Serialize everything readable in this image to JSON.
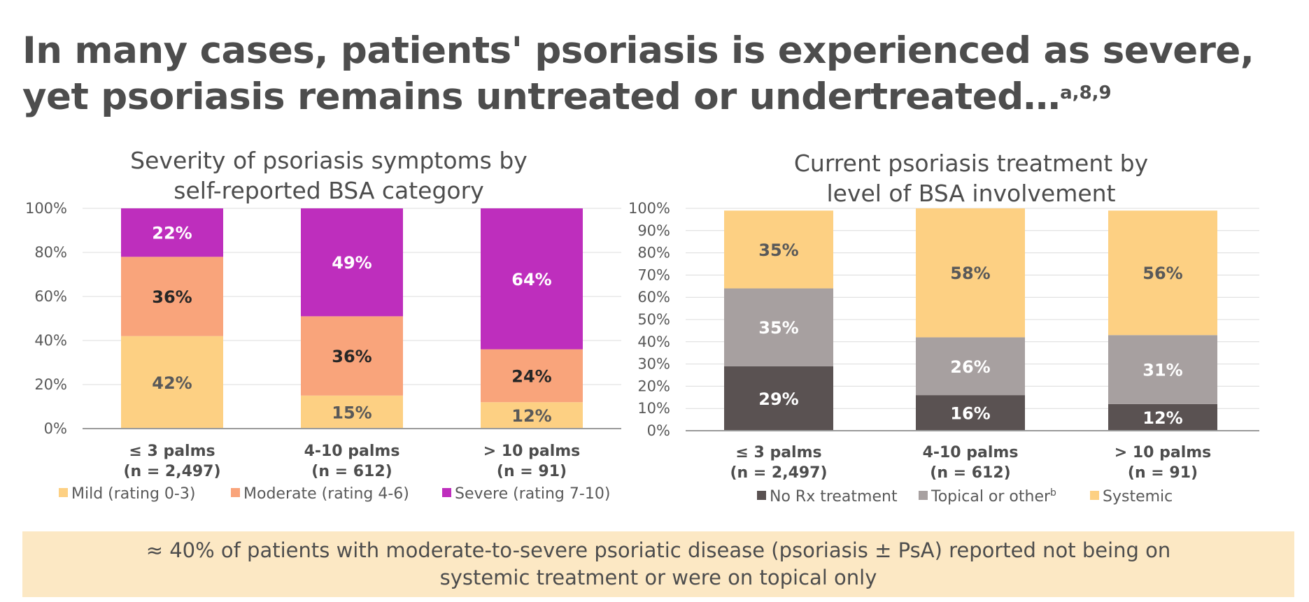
{
  "headline": {
    "line1": "In many cases, patients' psoriasis is experienced as severe,",
    "line2": "yet psoriasis remains untreated or undertreated…",
    "superscript": "a,8,9"
  },
  "callout": {
    "text": "≈ 40% of patients with moderate-to-severe psoriatic disease (psoriasis ± PsA) reported not being on systemic treatment or were on topical only"
  },
  "chart_data": [
    {
      "type": "bar",
      "stacked": true,
      "title": [
        "Severity of psoriasis symptoms by",
        "self-reported BSA category"
      ],
      "categories": [
        [
          "≤ 3 palms",
          "(n = 2,497)"
        ],
        [
          "4-10 palms",
          "(n = 612)"
        ],
        [
          "> 10 palms",
          "(n = 91)"
        ]
      ],
      "y_ticks": [
        "0%",
        "20%",
        "40%",
        "60%",
        "80%",
        "100%"
      ],
      "ylim": [
        0,
        100
      ],
      "legend_position": "bottom",
      "series": [
        {
          "name": "Mild (rating 0-3)",
          "color": "#fdd083",
          "label_color": "#595959",
          "values": [
            42,
            15,
            12
          ],
          "labels": [
            "42%",
            "15%",
            "12%"
          ]
        },
        {
          "name": "Moderate (rating 4-6)",
          "color": "#f9a47b",
          "label_color": "#262626",
          "values": [
            36,
            36,
            24
          ],
          "labels": [
            "36%",
            "36%",
            "24%"
          ]
        },
        {
          "name": "Severe (rating 7-10)",
          "color": "#be2ebd",
          "label_color": "#ffffff",
          "values": [
            22,
            49,
            64
          ],
          "labels": [
            "22%",
            "49%",
            "64%"
          ]
        }
      ]
    },
    {
      "type": "bar",
      "stacked": true,
      "title": [
        "Current psoriasis treatment by",
        "level of BSA involvement"
      ],
      "categories": [
        [
          "≤ 3 palms",
          "(n = 2,497)"
        ],
        [
          "4-10 palms",
          "(n = 612)"
        ],
        [
          "> 10 palms",
          "(n = 91)"
        ]
      ],
      "y_ticks": [
        "0%",
        "10%",
        "20%",
        "30%",
        "40%",
        "50%",
        "60%",
        "70%",
        "80%",
        "90%",
        "100%"
      ],
      "ylim": [
        0,
        100
      ],
      "legend_position": "bottom",
      "series": [
        {
          "name": "No Rx treatment",
          "color": "#5a5252",
          "label_color": "#ffffff",
          "values": [
            29,
            16,
            12
          ],
          "labels": [
            "29%",
            "16%",
            "12%"
          ]
        },
        {
          "name": "Topical or other",
          "name_sup": "b",
          "color": "#a7a0a0",
          "label_color": "#ffffff",
          "values": [
            35,
            26,
            31
          ],
          "labels": [
            "35%",
            "26%",
            "31%"
          ]
        },
        {
          "name": "Systemic",
          "color": "#fdd083",
          "label_color": "#595959",
          "values": [
            35,
            58,
            56
          ],
          "labels": [
            "35%",
            "58%",
            "56%"
          ]
        }
      ]
    }
  ]
}
